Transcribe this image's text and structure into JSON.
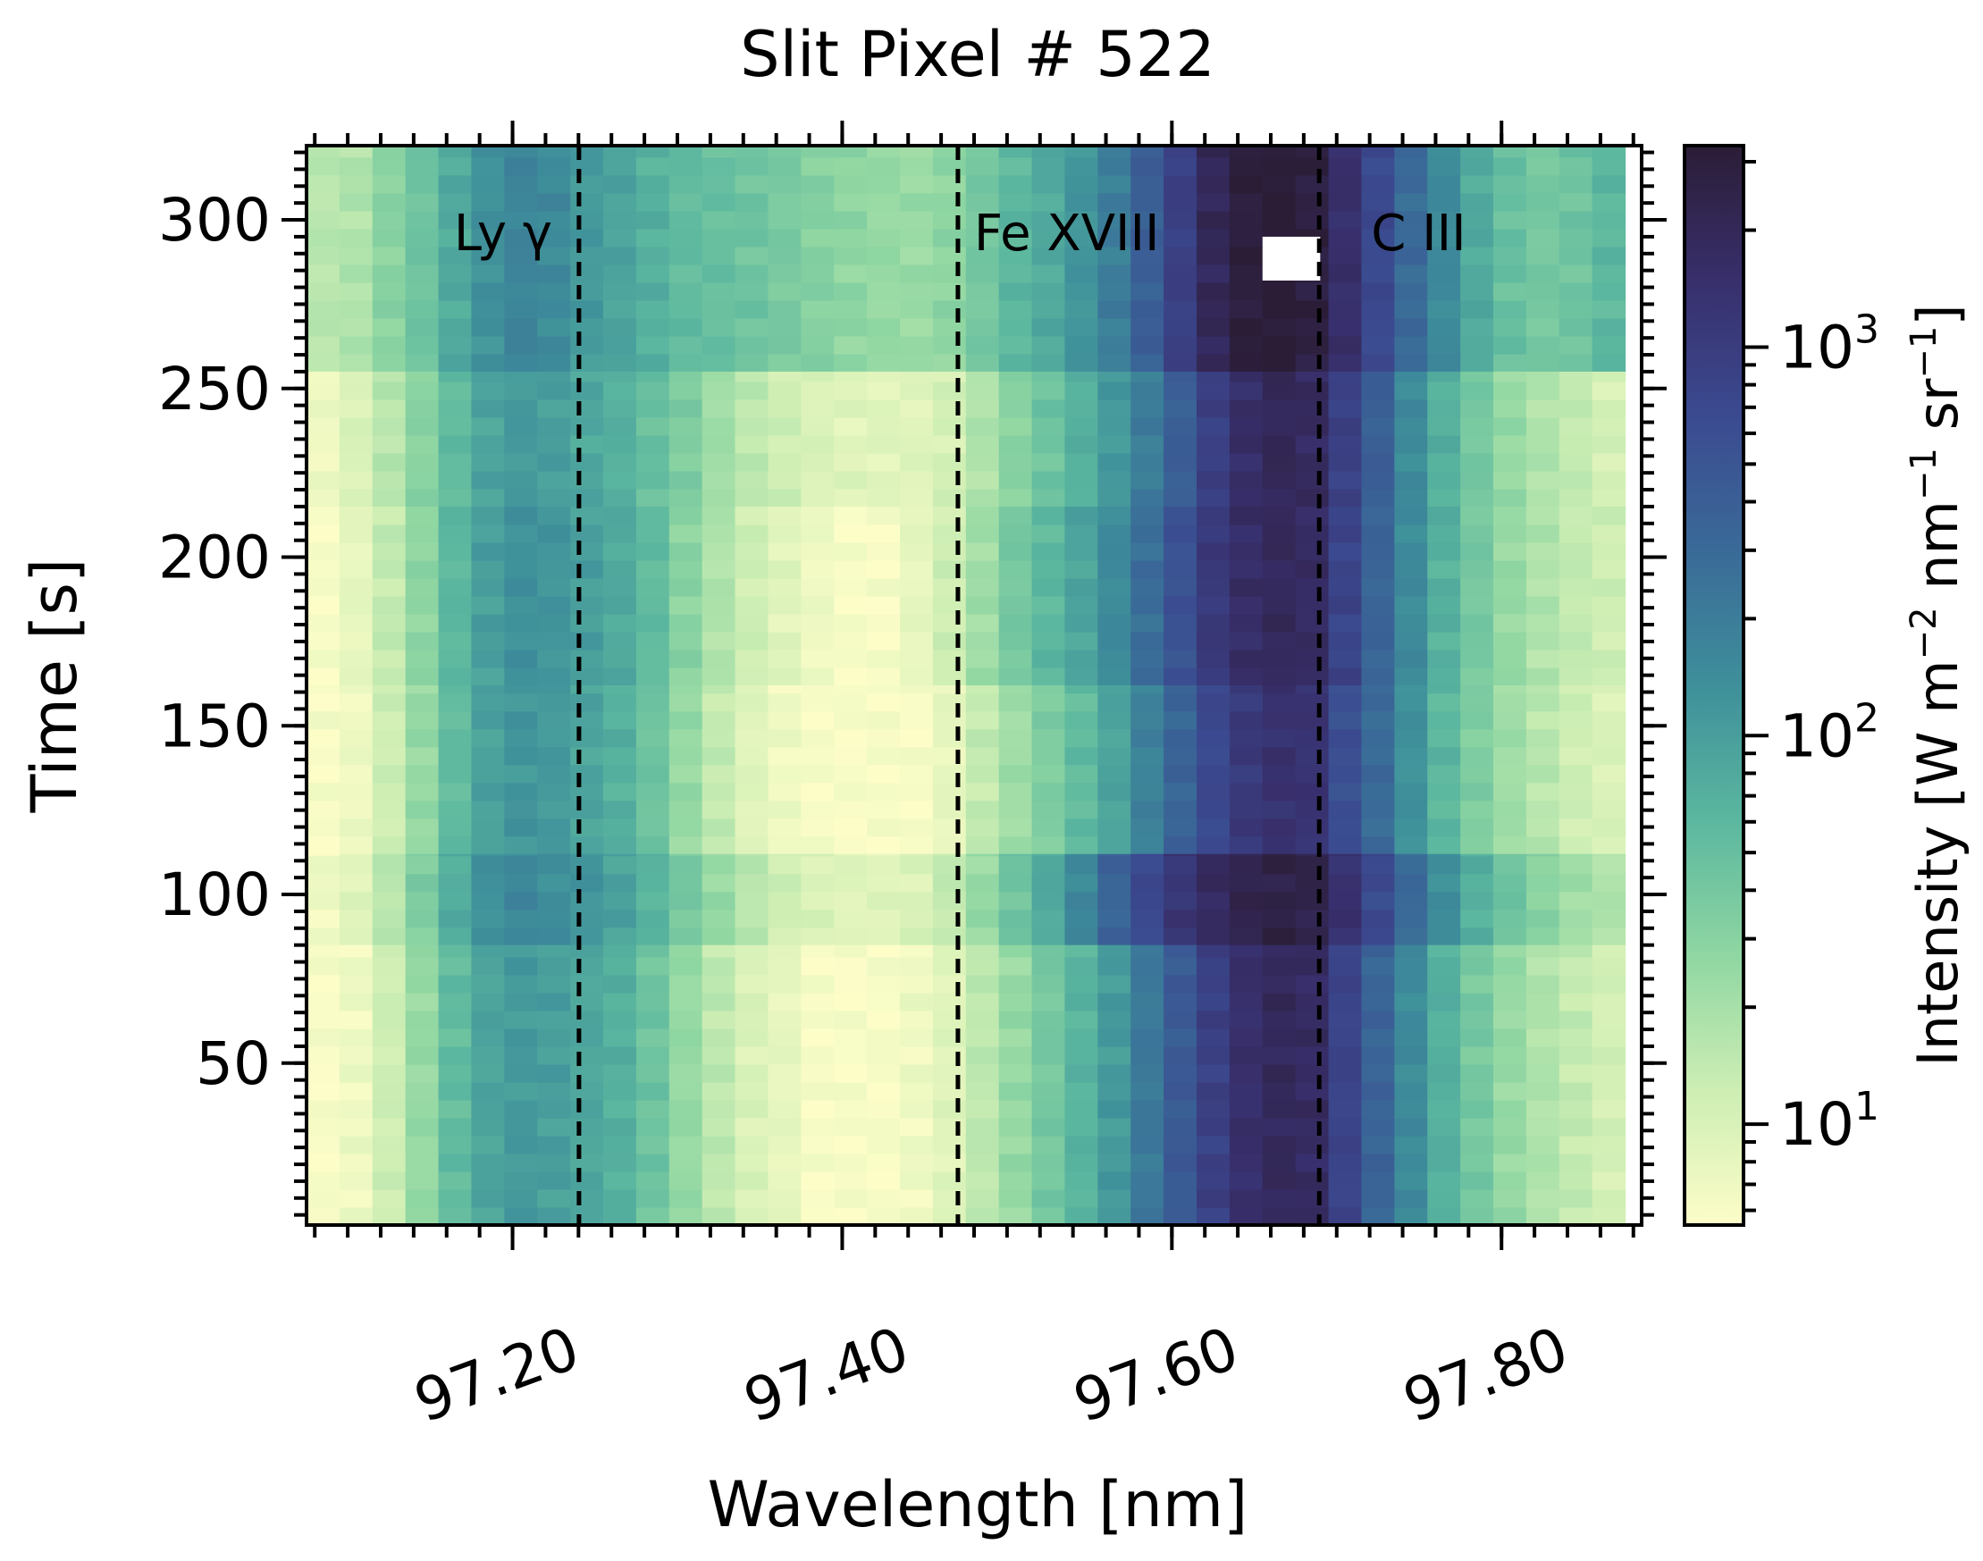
{
  "chart_data": {
    "type": "heatmap",
    "title": "Slit Pixel # 522",
    "xlabel": "Wavelength [nm]",
    "ylabel": "Time [s]",
    "colorbar_label": "Intensity [W m",
    "colorbar_label_sup1": "−2",
    "colorbar_label_mid": " nm",
    "colorbar_label_sup2": "−1",
    "colorbar_label_mid2": " sr",
    "colorbar_label_sup3": "−1",
    "colorbar_label_end": "]",
    "xlim": [
      97.075,
      97.885
    ],
    "ylim": [
      2,
      322
    ],
    "x_ticks": [
      97.2,
      97.4,
      97.6,
      97.8
    ],
    "x_tick_labels": [
      "97.20",
      "97.40",
      "97.60",
      "97.80"
    ],
    "y_ticks": [
      50,
      100,
      150,
      200,
      250,
      300
    ],
    "y_tick_labels": [
      "50",
      "100",
      "150",
      "200",
      "250",
      "300"
    ],
    "colorbar": {
      "scale": "log",
      "range": [
        5.5,
        3300
      ],
      "ticks": [
        10,
        100,
        1000
      ],
      "tick_base": "10",
      "tick_exponents": [
        "1",
        "2",
        "3"
      ],
      "colormap": [
        "#fdfdc8",
        "#cdeeb4",
        "#8fd6a2",
        "#5bb79f",
        "#3e8f9a",
        "#3a6a98",
        "#3b4a90",
        "#382f6c",
        "#2b1d36"
      ]
    },
    "reference_lines": [
      {
        "x": 97.2403,
        "label": "Ly γ"
      },
      {
        "x": 97.4702,
        "label": "Fe XVIII"
      },
      {
        "x": 97.6894,
        "label": "C III"
      }
    ],
    "missing_cell": {
      "x": [
        97.655,
        97.69
      ],
      "y": [
        282,
        295
      ]
    },
    "x_centers": [
      97.085,
      97.105,
      97.125,
      97.145,
      97.165,
      97.185,
      97.205,
      97.225,
      97.245,
      97.265,
      97.285,
      97.305,
      97.325,
      97.345,
      97.365,
      97.385,
      97.405,
      97.425,
      97.445,
      97.465,
      97.485,
      97.505,
      97.525,
      97.545,
      97.565,
      97.585,
      97.605,
      97.625,
      97.645,
      97.665,
      97.685,
      97.705,
      97.725,
      97.745,
      97.765,
      97.785,
      97.805,
      97.825,
      97.845,
      97.865
    ],
    "bands": [
      {
        "t": [
          255,
          322
        ],
        "values": [
          16,
          18,
          30,
          45,
          80,
          130,
          170,
          150,
          110,
          90,
          70,
          55,
          50,
          45,
          38,
          32,
          28,
          25,
          24,
          28,
          40,
          60,
          80,
          120,
          200,
          400,
          900,
          2000,
          3000,
          3300,
          2800,
          1500,
          700,
          300,
          150,
          80,
          50,
          40,
          45,
          60
        ]
      },
      {
        "t": [
          215,
          255
        ],
        "values": [
          7,
          10,
          16,
          30,
          55,
          90,
          110,
          100,
          85,
          70,
          50,
          35,
          22,
          15,
          12,
          10,
          9,
          9,
          9,
          11,
          18,
          30,
          45,
          70,
          110,
          200,
          400,
          900,
          1600,
          2000,
          1800,
          900,
          400,
          150,
          70,
          40,
          25,
          18,
          14,
          11
        ]
      },
      {
        "t": [
          162,
          215
        ],
        "values": [
          6,
          8,
          14,
          28,
          60,
          100,
          130,
          120,
          100,
          80,
          55,
          30,
          18,
          12,
          9,
          7,
          6,
          6,
          8,
          12,
          22,
          40,
          60,
          90,
          150,
          280,
          550,
          1100,
          1600,
          1900,
          1700,
          800,
          350,
          150,
          70,
          40,
          25,
          18,
          14,
          12
        ]
      },
      {
        "t": [
          112,
          162
        ],
        "values": [
          6,
          7,
          12,
          25,
          55,
          95,
          120,
          110,
          90,
          70,
          45,
          25,
          14,
          9,
          7,
          6,
          6,
          6,
          6,
          8,
          14,
          22,
          35,
          55,
          90,
          180,
          350,
          700,
          1100,
          1400,
          1300,
          600,
          300,
          130,
          60,
          35,
          22,
          16,
          12,
          10
        ]
      },
      {
        "t": [
          85,
          112
        ],
        "values": [
          7,
          9,
          16,
          35,
          75,
          130,
          160,
          140,
          120,
          95,
          65,
          40,
          25,
          16,
          12,
          10,
          9,
          9,
          10,
          14,
          25,
          45,
          80,
          160,
          350,
          700,
          1200,
          1800,
          2300,
          2600,
          2400,
          1400,
          700,
          300,
          140,
          70,
          45,
          30,
          22,
          18
        ]
      },
      {
        "t": [
          2,
          85
        ],
        "values": [
          6,
          7,
          12,
          25,
          55,
          90,
          110,
          100,
          85,
          70,
          45,
          25,
          15,
          10,
          8,
          6,
          6,
          6,
          7,
          9,
          15,
          25,
          40,
          65,
          110,
          220,
          450,
          900,
          1500,
          1900,
          1700,
          800,
          350,
          150,
          70,
          40,
          25,
          18,
          14,
          11
        ]
      }
    ]
  }
}
